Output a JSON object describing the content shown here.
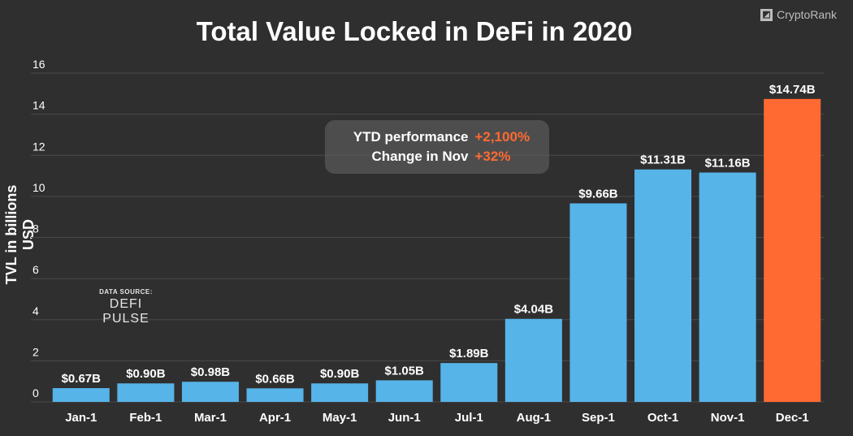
{
  "chart_data": {
    "type": "bar",
    "title": "Total Value Locked in DeFi in 2020",
    "xlabel": "",
    "ylabel": "TVL in billions USD",
    "ylim": [
      0,
      16
    ],
    "yticks": [
      0,
      2,
      4,
      6,
      8,
      10,
      12,
      14,
      16
    ],
    "grid": true,
    "categories": [
      "Jan-1",
      "Feb-1",
      "Mar-1",
      "Apr-1",
      "May-1",
      "Jun-1",
      "Jul-1",
      "Aug-1",
      "Sep-1",
      "Oct-1",
      "Nov-1",
      "Dec-1"
    ],
    "values": [
      0.67,
      0.9,
      0.98,
      0.66,
      0.9,
      1.05,
      1.89,
      4.04,
      9.66,
      11.31,
      11.16,
      14.74
    ],
    "data_labels": [
      "$0.67B",
      "$0.90B",
      "$0.98B",
      "$0.66B",
      "$0.90B",
      "$1.05B",
      "$1.89B",
      "$4.04B",
      "$9.66B",
      "$11.31B",
      "$11.16B",
      "$14.74B"
    ],
    "highlight_index": 11
  },
  "annotation": {
    "ytd_label": "YTD performance",
    "ytd_value": "+2,100%",
    "nov_label": "Change in Nov",
    "nov_value": "+32%"
  },
  "source": {
    "small": "DATA SOURCE:",
    "name": "DEFI PULSE"
  },
  "brand": {
    "name": "CryptoRank",
    "icon": "cryptorank-icon"
  },
  "colors": {
    "background": "#2f2f2f",
    "bar": "#56b4e9",
    "highlight": "#ff6a33",
    "grid": "#4a4a4a",
    "accent_text": "#ff6a33"
  }
}
